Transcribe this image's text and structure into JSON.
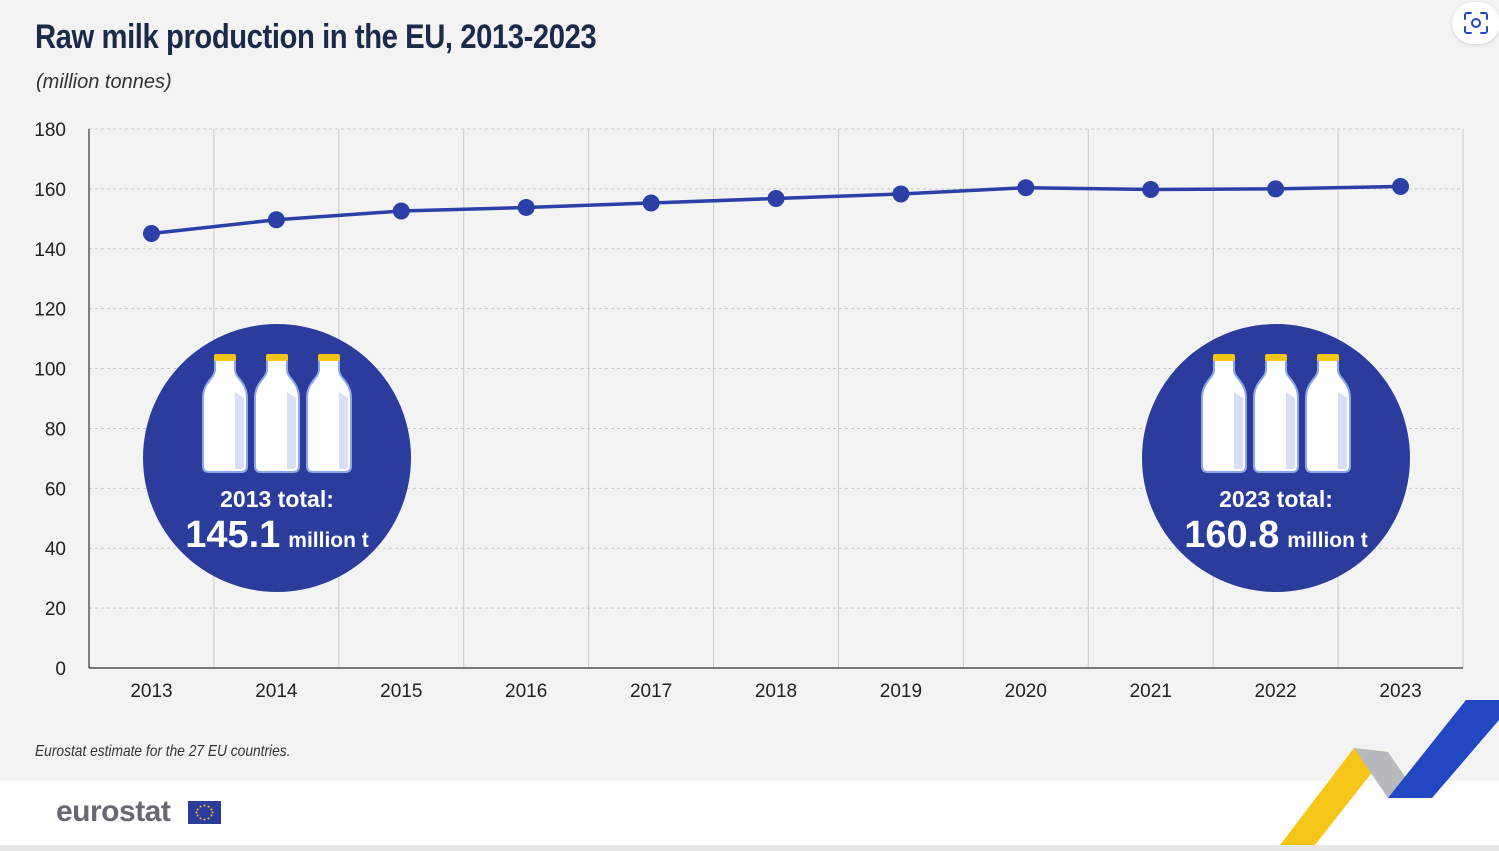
{
  "header": {
    "title": "Raw milk production in the EU, 2013-2023",
    "subtitle": "(million tonnes)"
  },
  "footnote": "Eurostat estimate for the 27 EU countries.",
  "logo": {
    "text": "eurostat",
    "flag_icon": "eu-flag-icon"
  },
  "toolbar": {
    "screenshot_icon": "screenshot-icon"
  },
  "colors": {
    "line": "#2b3fa6",
    "circle": "#2b3c9c",
    "grid": "#c8c8c8",
    "axis": "#333333",
    "text": "#1c2a4a",
    "yellow": "#f5c518",
    "blue_accent": "#2147c2"
  },
  "callouts": [
    {
      "label": "2013 total:",
      "value": "145.1",
      "unit": "million t",
      "icon": "milk-bottles-icon"
    },
    {
      "label": "2023 total:",
      "value": "160.8",
      "unit": "million t",
      "icon": "milk-bottles-icon"
    }
  ],
  "chart_data": {
    "type": "line",
    "title": "Raw milk production in the EU, 2013-2023",
    "subtitle": "(million tonnes)",
    "xlabel": "",
    "ylabel": "",
    "ylim": [
      0,
      180
    ],
    "yticks": [
      0,
      20,
      40,
      60,
      80,
      100,
      120,
      140,
      160,
      180
    ],
    "grid": true,
    "categories": [
      "2013",
      "2014",
      "2015",
      "2016",
      "2017",
      "2018",
      "2019",
      "2020",
      "2021",
      "2022",
      "2023"
    ],
    "series": [
      {
        "values": [
          145.1,
          149.7,
          152.6,
          153.8,
          155.3,
          156.8,
          158.3,
          160.4,
          159.8,
          160.0,
          160.8
        ]
      }
    ]
  }
}
